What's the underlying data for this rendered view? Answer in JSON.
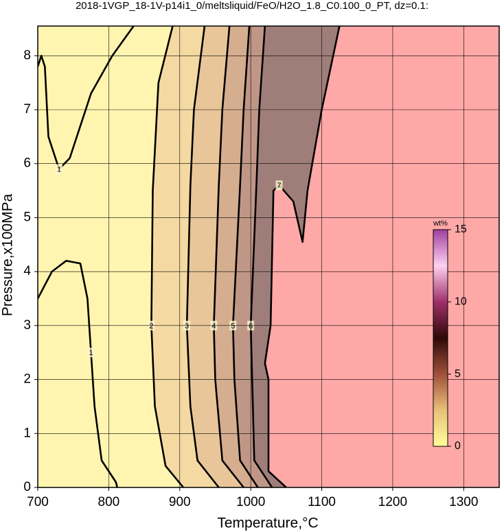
{
  "chart_data": {
    "type": "contour",
    "title": "2018-1VGP_18-1V-p14i1_0/meltsliquid/FeO/H2O_1.8_C0.100_0_PT, dz=0.1:",
    "xlabel": "Temperature,°C",
    "ylabel": "Pressure,x100MPa",
    "xlim": [
      700,
      1350
    ],
    "ylim": [
      0,
      8.55
    ],
    "xticks": [
      700,
      800,
      900,
      1000,
      1100,
      1200,
      1300
    ],
    "yticks": [
      0,
      1,
      2,
      3,
      4,
      5,
      6,
      7,
      8
    ],
    "grid": true,
    "background": "#fff5b0",
    "contours": [
      {
        "level": 1,
        "x": [
          835,
          805,
          775,
          745,
          730,
          715,
          710,
          705,
          700
        ],
        "y": [
          8.55,
          8.0,
          7.3,
          6.1,
          5.9,
          6.5,
          7.8,
          8.0,
          7.8
        ]
      },
      {
        "level": 1,
        "x": [
          700,
          720,
          740,
          760,
          770,
          775,
          780,
          790,
          810,
          812
        ],
        "y": [
          3.5,
          4.0,
          4.2,
          4.15,
          3.5,
          2.5,
          1.5,
          0.5,
          0.1,
          0
        ]
      },
      {
        "level": 2,
        "fill": "#f4daa2",
        "x": [
          905,
          880,
          865,
          860,
          862,
          870,
          890
        ],
        "y": [
          0,
          0.4,
          1.5,
          3,
          5.5,
          7.5,
          8.55
        ]
      },
      {
        "level": 3,
        "fill": "#e8c699",
        "x": [
          955,
          925,
          915,
          910,
          915,
          920,
          935
        ],
        "y": [
          0,
          0.5,
          1.5,
          3,
          5.6,
          7,
          8.55
        ]
      },
      {
        "level": 4,
        "fill": "#d5ad8f",
        "x": [
          990,
          960,
          950,
          948,
          955,
          960,
          970
        ],
        "y": [
          0,
          0.5,
          2,
          3,
          5.6,
          7,
          8.55
        ]
      },
      {
        "level": 5,
        "fill": "#c09787",
        "x": [
          1010,
          985,
          977,
          975,
          985,
          990,
          998
        ],
        "y": [
          0,
          0.5,
          2,
          3,
          5.6,
          7,
          8.55
        ]
      },
      {
        "level": 6,
        "fill": "#9f7e7a",
        "x": [
          1030,
          1005,
          1002,
          1000,
          1008,
          1012,
          1020
        ],
        "y": [
          0,
          0.5,
          2,
          3,
          5.6,
          7,
          8.55
        ]
      },
      {
        "level": 7,
        "fill": "#ffa8a8",
        "x": [
          1050,
          1025,
          1025,
          1020,
          1028,
          1032,
          1040,
          1060,
          1073,
          1080,
          1100,
          1125
        ],
        "y": [
          0,
          0.3,
          2,
          2.3,
          3,
          5.5,
          5.6,
          5.3,
          4.55,
          5.5,
          7,
          8.55
        ]
      }
    ],
    "colorbar": {
      "label": "wt%",
      "lim": [
        0,
        15
      ],
      "ticks": [
        0,
        5,
        10,
        15
      ],
      "colors": [
        "#ffff99",
        "#e8c07a",
        "#a0503a",
        "#300808",
        "#a0306a",
        "#ffd0f0",
        "#a040a0"
      ]
    }
  }
}
